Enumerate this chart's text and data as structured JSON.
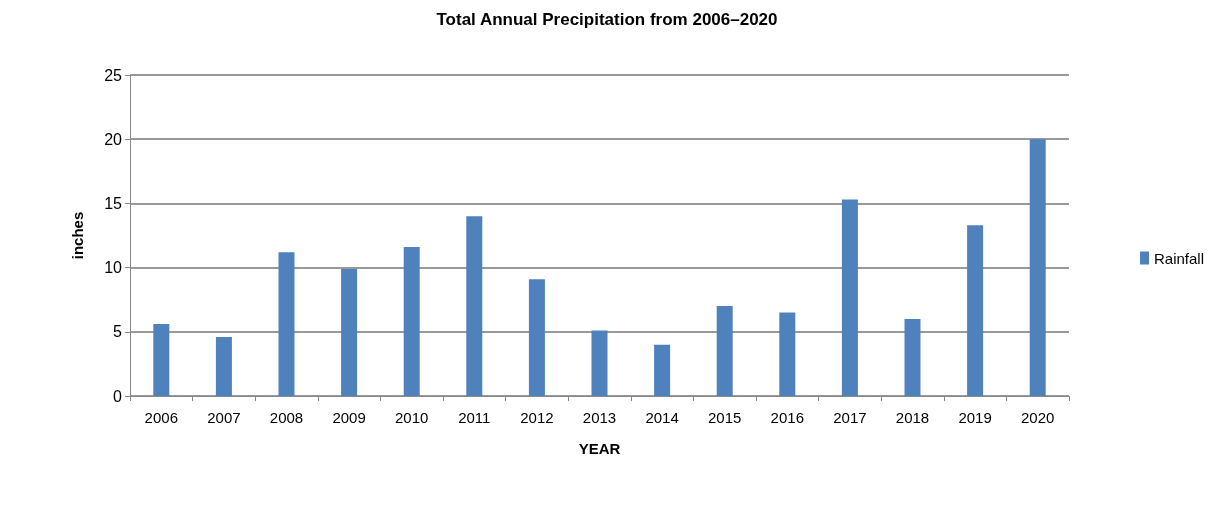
{
  "chart_data": {
    "type": "bar",
    "title": "Total Annual Precipitation from 2006–2020",
    "xlabel": "YEAR",
    "ylabel": "inches",
    "categories": [
      "2006",
      "2007",
      "2008",
      "2009",
      "2010",
      "2011",
      "2012",
      "2013",
      "2014",
      "2015",
      "2016",
      "2017",
      "2018",
      "2019",
      "2020"
    ],
    "series": [
      {
        "name": "Rainfall",
        "color": "#4f81bd",
        "values": [
          5.6,
          4.6,
          11.2,
          9.9,
          11.6,
          14.0,
          9.1,
          5.1,
          4.0,
          7.0,
          6.5,
          15.3,
          6.0,
          13.3,
          20.0
        ]
      }
    ],
    "ylim": [
      0,
      25
    ],
    "yticks": [
      0,
      5,
      10,
      15,
      20,
      25
    ],
    "grid": "y",
    "legend": "right"
  }
}
